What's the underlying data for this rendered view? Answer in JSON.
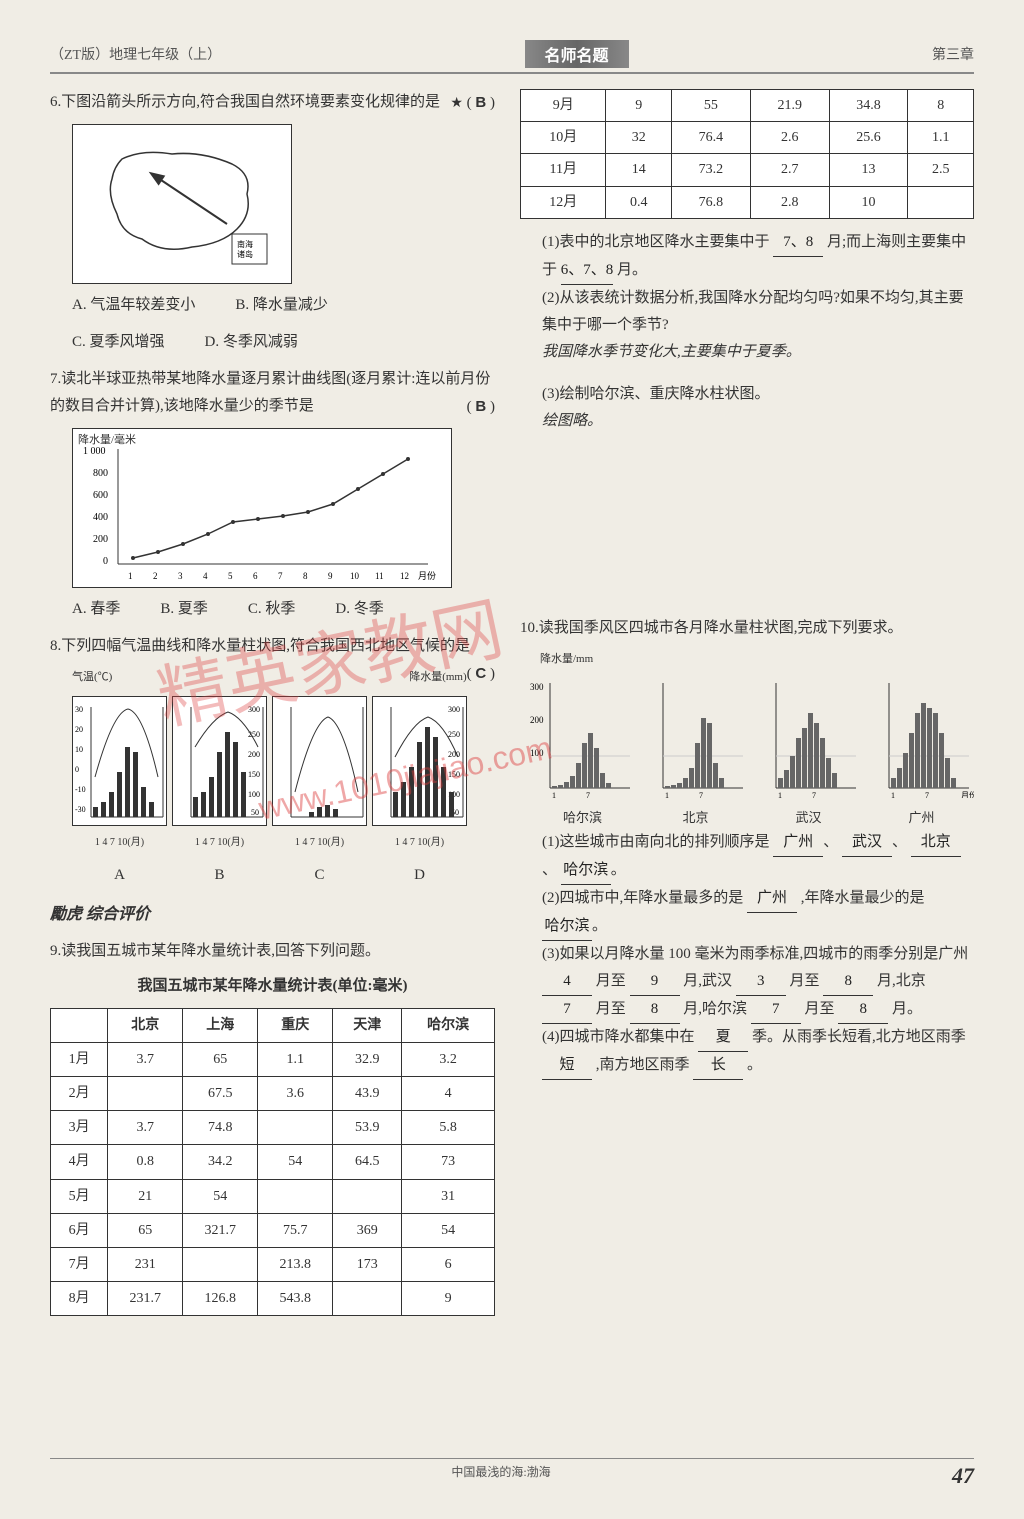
{
  "header": {
    "left": "（ZT版）地理七年级（上）",
    "center": "名师名题",
    "right": "第三章"
  },
  "left_column": {
    "q6": {
      "num": "6.",
      "text": "下图沿箭头所示方向,符合我国自然环境要素变化规律的是",
      "star": "★",
      "answer": "B",
      "options": {
        "A": "A. 气温年较差变小",
        "B": "B. 降水量减少",
        "C": "C. 夏季风增强",
        "D": "D. 冬季风减弱"
      }
    },
    "q7": {
      "num": "7.",
      "text": "读北半球亚热带某地降水量逐月累计曲线图(逐月累计:连以前月份的数目合并计算),该地降水量少的季节是",
      "answer": "B",
      "chart": {
        "y_label": "降水量/毫米",
        "y_max": 1000,
        "y_ticks": [
          0,
          200,
          400,
          600,
          800,
          1000
        ],
        "x_label": "月份",
        "x_ticks": [
          1,
          2,
          3,
          4,
          5,
          6,
          7,
          8,
          9,
          10,
          11,
          12
        ],
        "values": [
          50,
          120,
          200,
          300,
          400,
          430,
          450,
          480,
          550,
          700,
          850,
          950
        ]
      },
      "options": {
        "A": "A. 春季",
        "B": "B. 夏季",
        "C": "C. 秋季",
        "D": "D. 冬季"
      }
    },
    "q8": {
      "num": "8.",
      "text": "下列四幅气温曲线和降水量柱状图,符合我国西北地区气候的是",
      "answer": "C",
      "temp_label": "气温(℃)",
      "precip_label": "降水量(mm)",
      "x_label": "1 4 7 10(月)",
      "labels": [
        "A",
        "B",
        "C",
        "D"
      ]
    },
    "section": "综合评价",
    "q9": {
      "num": "9.",
      "text": "读我国五城市某年降水量统计表,回答下列问题。",
      "table_title": "我国五城市某年降水量统计表(单位:毫米)",
      "columns": [
        "",
        "北京",
        "上海",
        "重庆",
        "天津",
        "哈尔滨"
      ],
      "rows": [
        [
          "1月",
          "3.7",
          "65",
          "1.1",
          "32.9",
          "3.2"
        ],
        [
          "2月",
          "",
          "67.5",
          "3.6",
          "43.9",
          "4"
        ],
        [
          "3月",
          "3.7",
          "74.8",
          "",
          "53.9",
          "5.8"
        ],
        [
          "4月",
          "0.8",
          "34.2",
          "54",
          "64.5",
          "73"
        ],
        [
          "5月",
          "21",
          "54",
          "",
          "",
          "31"
        ],
        [
          "6月",
          "65",
          "321.7",
          "75.7",
          "369",
          "54"
        ],
        [
          "7月",
          "231",
          "",
          "213.8",
          "173",
          "6"
        ],
        [
          "8月",
          "231.7",
          "126.8",
          "543.8",
          "",
          "9"
        ]
      ]
    }
  },
  "right_column": {
    "table_cont": {
      "rows": [
        [
          "9月",
          "9",
          "55",
          "21.9",
          "34.8",
          "8"
        ],
        [
          "10月",
          "32",
          "76.4",
          "2.6",
          "25.6",
          "1.1"
        ],
        [
          "11月",
          "14",
          "73.2",
          "2.7",
          "13",
          "2.5"
        ],
        [
          "12月",
          "0.4",
          "76.8",
          "2.8",
          "10",
          ""
        ]
      ]
    },
    "q9_parts": {
      "p1_text": "(1)表中的北京地区降水主要集中于",
      "p1_ans1": "7、8",
      "p1_text2": "月;而上海则主要集中于",
      "p1_ans2": "6、7、8",
      "p1_text3": "月。",
      "p2_text": "(2)从该表统计数据分析,我国降水分配均匀吗?如果不均匀,其主要集中于哪一个季节?",
      "p2_ans": "我国降水季节变化大,主要集中于夏季。",
      "p3_text": "(3)绘制哈尔滨、重庆降水柱状图。",
      "p3_ans": "绘图略。"
    },
    "q10": {
      "num": "10.",
      "text": "读我国季风区四城市各月降水量柱状图,完成下列要求。",
      "y_label": "降水量/mm",
      "y_ticks": [
        0,
        100,
        200,
        300
      ],
      "x_label": "月份",
      "cities": [
        "哈尔滨",
        "北京",
        "武汉",
        "广州"
      ],
      "p1_text": "(1)这些城市由南向北的排列顺序是",
      "p1_ans": [
        "广州",
        "武汉",
        "北京",
        "哈尔滨"
      ],
      "p2_text1": "(2)四城市中,年降水量最多的是",
      "p2_ans1": "广州",
      "p2_text2": ",年降水量最少的是",
      "p2_ans2": "哈尔滨",
      "p3_text": "(3)如果以月降水量 100 毫米为雨季标准,四城市的雨季分别是广州",
      "p3_vals": [
        "4",
        "9",
        "3",
        "8",
        "7",
        "8",
        "7",
        "8"
      ],
      "p3_labels": [
        "月至",
        "月,武汉",
        "月至",
        "月,北京",
        "月至",
        "月,哈尔滨",
        "月至",
        "月。"
      ],
      "p4_text1": "(4)四城市降水都集中在",
      "p4_ans1": "夏",
      "p4_text2": "季。从雨季长短看,北方地区雨季",
      "p4_ans2": "短",
      "p4_text3": ",南方地区雨季",
      "p4_ans3": "长",
      "p4_text4": "。"
    }
  },
  "footer": {
    "center": "中国最浅的海:渤海",
    "page": "47"
  },
  "watermark": {
    "text": "精英家教网",
    "url": "www.1010jiajiao.com"
  }
}
